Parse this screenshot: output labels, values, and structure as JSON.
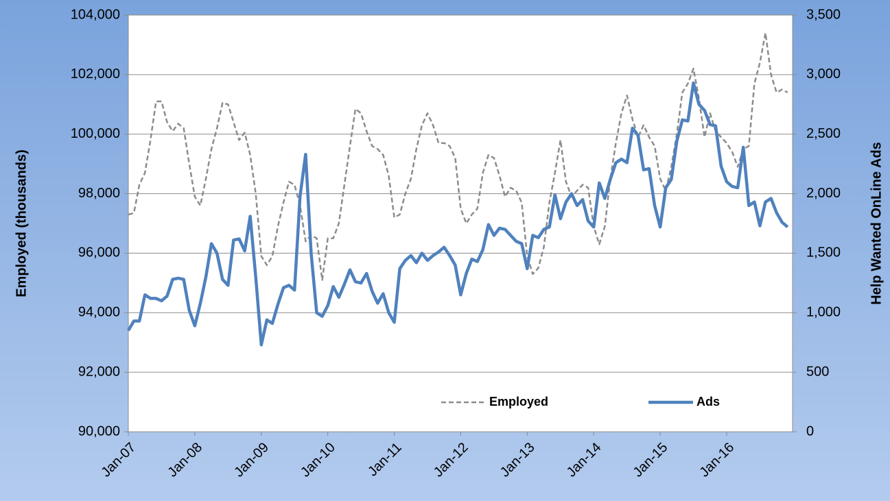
{
  "chart_data": {
    "type": "line",
    "categories": [
      "Jan-07",
      null,
      null,
      null,
      null,
      null,
      null,
      null,
      null,
      null,
      null,
      null,
      "Jan-08",
      null,
      null,
      null,
      null,
      null,
      null,
      null,
      null,
      null,
      null,
      null,
      "Jan-09",
      null,
      null,
      null,
      null,
      null,
      null,
      null,
      null,
      null,
      null,
      null,
      "Jan-10",
      null,
      null,
      null,
      null,
      null,
      null,
      null,
      null,
      null,
      null,
      null,
      "Jan-11",
      null,
      null,
      null,
      null,
      null,
      null,
      null,
      null,
      null,
      null,
      null,
      "Jan-12",
      null,
      null,
      null,
      null,
      null,
      null,
      null,
      null,
      null,
      null,
      null,
      "Jan-13",
      null,
      null,
      null,
      null,
      null,
      null,
      null,
      null,
      null,
      null,
      null,
      "Jan-14",
      null,
      null,
      null,
      null,
      null,
      null,
      null,
      null,
      null,
      null,
      null,
      "Jan-15",
      null,
      null,
      null,
      null,
      null,
      null,
      null,
      null,
      null,
      null,
      null,
      "Jan-16",
      null,
      null,
      null,
      null,
      null,
      null,
      null,
      null,
      null,
      null,
      null
    ],
    "ylabel": "Employed (thousands)",
    "y2label": "Help Wanted OnLine Ads",
    "ylim": [
      90000,
      104000
    ],
    "yticks": [
      {
        "value": 90000,
        "label": "90,000"
      },
      {
        "value": 92000,
        "label": "92,000"
      },
      {
        "value": 94000,
        "label": "94,000"
      },
      {
        "value": 96000,
        "label": "96,000"
      },
      {
        "value": 98000,
        "label": "98,000"
      },
      {
        "value": 100000,
        "label": "100,000"
      },
      {
        "value": 102000,
        "label": "102,000"
      },
      {
        "value": 104000,
        "label": "104,000"
      }
    ],
    "y2lim": [
      0,
      3500
    ],
    "y2ticks": [
      0,
      500,
      {
        "value": 1000,
        "label": "1,000"
      },
      {
        "value": 1500,
        "label": "1,500"
      },
      {
        "value": 2000,
        "label": "2,000"
      },
      {
        "value": 2500,
        "label": "2,500"
      },
      {
        "value": 3000,
        "label": "3,000"
      },
      {
        "value": 3500,
        "label": "3,500"
      }
    ],
    "grid": true,
    "legend": "lower right",
    "series": [
      {
        "name": "Employed",
        "color": "#8c8c8c",
        "dashed": true,
        "values": [
          97300,
          97350,
          98300,
          98700,
          99800,
          101100,
          101100,
          100400,
          100100,
          100350,
          100200,
          99000,
          97900,
          97600,
          98500,
          99500,
          100200,
          101050,
          101000,
          100400,
          99800,
          100050,
          99300,
          98000,
          95900,
          95600,
          95900,
          96900,
          97700,
          98400,
          98300,
          97600,
          96400,
          96600,
          96500,
          95100,
          96500,
          96500,
          97000,
          98300,
          99600,
          100850,
          100700,
          100100,
          99600,
          99500,
          99300,
          98600,
          97200,
          97300,
          98000,
          98500,
          99500,
          100300,
          100700,
          100300,
          99700,
          99700,
          99600,
          99200,
          97500,
          97000,
          97300,
          97500,
          98700,
          99300,
          99200,
          98600,
          97900,
          98200,
          98100,
          97700,
          95900,
          95300,
          95500,
          96200,
          97700,
          98700,
          99800,
          98400,
          97900,
          98100,
          98300,
          98200,
          96900,
          96300,
          96900,
          98500,
          99700,
          100700,
          101300,
          100500,
          99900,
          100300,
          99900,
          99600,
          98500,
          98100,
          98900,
          100000,
          101400,
          101700,
          102200,
          101200,
          99900,
          100700,
          100100,
          99900,
          99700,
          99400,
          98900,
          99500,
          99600,
          101700,
          102400,
          103400,
          102000,
          101400,
          101500,
          101400
        ]
      },
      {
        "name": "Ads",
        "color": "#4f81bd",
        "axis": "y2",
        "values": [
          850,
          930,
          930,
          1150,
          1120,
          1120,
          1100,
          1140,
          1280,
          1290,
          1280,
          1020,
          890,
          1080,
          1300,
          1580,
          1500,
          1280,
          1230,
          1610,
          1620,
          1520,
          1810,
          1300,
          730,
          940,
          910,
          1070,
          1210,
          1230,
          1190,
          1980,
          2330,
          1500,
          1000,
          970,
          1060,
          1220,
          1130,
          1240,
          1360,
          1260,
          1250,
          1330,
          1180,
          1080,
          1160,
          1000,
          920,
          1370,
          1440,
          1480,
          1420,
          1500,
          1440,
          1480,
          1510,
          1550,
          1480,
          1400,
          1150,
          1330,
          1450,
          1430,
          1530,
          1740,
          1650,
          1710,
          1700,
          1650,
          1600,
          1580,
          1370,
          1650,
          1630,
          1700,
          1720,
          1990,
          1790,
          1930,
          2000,
          1900,
          1950,
          1770,
          1720,
          2090,
          1960,
          2120,
          2260,
          2290,
          2260,
          2550,
          2490,
          2200,
          2210,
          1900,
          1720,
          2050,
          2120,
          2440,
          2620,
          2610,
          2930,
          2750,
          2700,
          2580,
          2570,
          2230,
          2100,
          2060,
          2050,
          2390,
          1900,
          1930,
          1730,
          1930,
          1960,
          1840,
          1760,
          1720
        ]
      }
    ]
  }
}
